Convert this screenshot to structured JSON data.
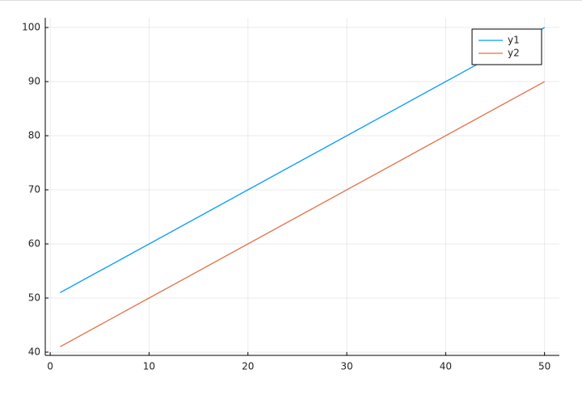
{
  "chart_data": {
    "type": "line",
    "x": [
      1,
      50
    ],
    "series": [
      {
        "name": "y1",
        "color": "#009af9",
        "values": [
          51,
          100
        ]
      },
      {
        "name": "y2",
        "color": "#e26f46",
        "values": [
          41,
          90
        ]
      }
    ],
    "xlim": [
      -0.5,
      51.5
    ],
    "xticks": [
      0,
      10,
      20,
      30,
      40,
      50
    ],
    "ylim": [
      39.4,
      101.8
    ],
    "yticks": [
      40,
      50,
      60,
      70,
      80,
      90,
      100
    ],
    "grid": true,
    "legend": "top-right"
  }
}
